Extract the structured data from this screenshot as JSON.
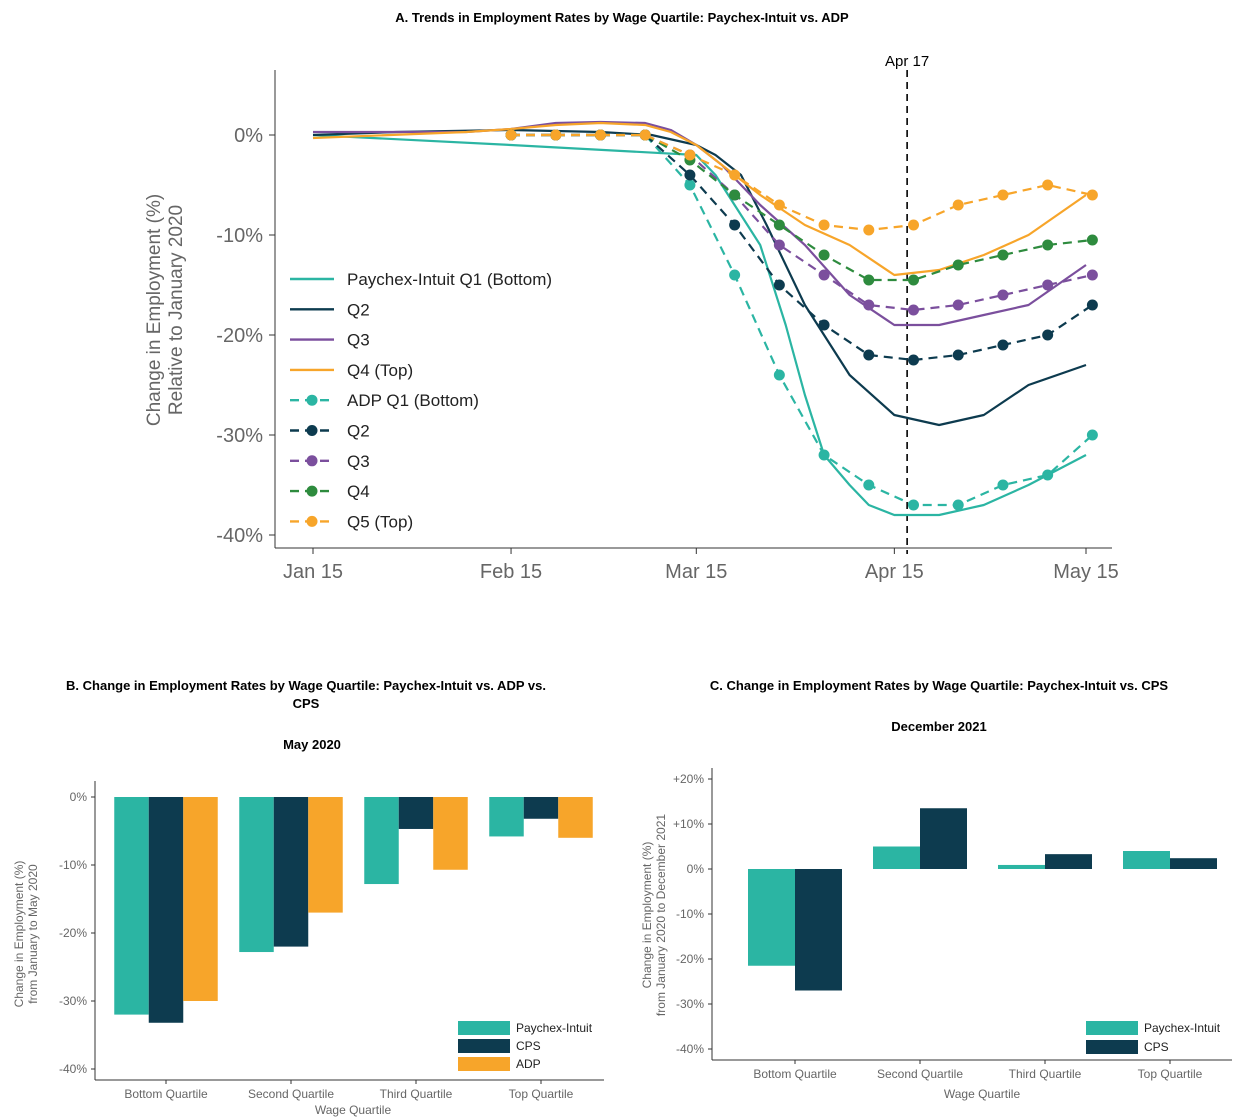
{
  "chart_data": [
    {
      "type": "line",
      "title": "A. Trends in Employment Rates by Wage Quartile: Paychex-Intuit vs. ADP",
      "ylabel": "Change in Employment (%)",
      "ylabel2": "Relative to January 2020",
      "x_ticks": [
        "Jan 15",
        "Feb 15",
        "Mar 15",
        "Apr 15",
        "May 15"
      ],
      "y_ticks": [
        "0%",
        "-10%",
        "-20%",
        "-30%",
        "-40%"
      ],
      "ylim": [
        -40,
        6
      ],
      "vline": {
        "date": "2020-04-17",
        "label": "Apr 17"
      },
      "legend_position": "left",
      "series": [
        {
          "name": "Paychex-Intuit Q1 (Bottom)",
          "color": "#2bb5a3",
          "style": "solid",
          "x": [
            "2020-01-15",
            "2020-02-15",
            "2020-03-15",
            "2020-03-18",
            "2020-03-21",
            "2020-03-25",
            "2020-03-29",
            "2020-04-01",
            "2020-04-04",
            "2020-04-08",
            "2020-04-11",
            "2020-04-15",
            "2020-04-22",
            "2020-04-29",
            "2020-05-06",
            "2020-05-15"
          ],
          "y": [
            0,
            -1,
            -2,
            -4,
            -7,
            -11,
            -19,
            -26,
            -32,
            -35,
            -37,
            -38,
            -38,
            -37,
            -35,
            -32
          ]
        },
        {
          "name": "Q2",
          "color": "#0d3b4f",
          "style": "solid",
          "x": [
            "2020-01-15",
            "2020-01-28",
            "2020-02-15",
            "2020-02-29",
            "2020-03-08",
            "2020-03-15",
            "2020-03-18",
            "2020-03-22",
            "2020-03-26",
            "2020-04-01",
            "2020-04-08",
            "2020-04-15",
            "2020-04-22",
            "2020-04-29",
            "2020-05-06",
            "2020-05-15"
          ],
          "y": [
            0,
            0.3,
            0.5,
            0.3,
            0,
            -1,
            -2,
            -4,
            -9,
            -17,
            -24,
            -28,
            -29,
            -28,
            -25,
            -23
          ]
        },
        {
          "name": "Q3",
          "color": "#7b4f9d",
          "style": "solid",
          "x": [
            "2020-01-15",
            "2020-02-08",
            "2020-02-15",
            "2020-02-22",
            "2020-02-29",
            "2020-03-07",
            "2020-03-11",
            "2020-03-15",
            "2020-03-19",
            "2020-03-25",
            "2020-04-01",
            "2020-04-08",
            "2020-04-15",
            "2020-04-22",
            "2020-04-29",
            "2020-05-06",
            "2020-05-15"
          ],
          "y": [
            0.3,
            0.3,
            0.6,
            1.2,
            1.3,
            1.2,
            0.5,
            -1,
            -3,
            -7,
            -11,
            -16,
            -19,
            -19,
            -18,
            -17,
            -13
          ]
        },
        {
          "name": "Q4 (Top)",
          "color": "#f7a52a",
          "style": "solid",
          "x": [
            "2020-01-15",
            "2020-02-08",
            "2020-02-15",
            "2020-02-22",
            "2020-02-29",
            "2020-03-07",
            "2020-03-11",
            "2020-03-15",
            "2020-03-19",
            "2020-03-25",
            "2020-04-01",
            "2020-04-08",
            "2020-04-15",
            "2020-04-22",
            "2020-04-29",
            "2020-05-06",
            "2020-05-15"
          ],
          "y": [
            -0.3,
            0.3,
            0.6,
            1.0,
            1.2,
            1.0,
            0.3,
            -1,
            -3,
            -6,
            -9,
            -11,
            -14,
            -13.5,
            -12,
            -10,
            -6
          ]
        },
        {
          "name": "ADP Q1 (Bottom)",
          "color": "#2bb5a3",
          "style": "dashed",
          "markers": true,
          "x": [
            "2020-02-15",
            "2020-02-22",
            "2020-02-29",
            "2020-03-07",
            "2020-03-14",
            "2020-03-21",
            "2020-03-28",
            "2020-04-04",
            "2020-04-11",
            "2020-04-18",
            "2020-04-25",
            "2020-05-02",
            "2020-05-09",
            "2020-05-16"
          ],
          "y": [
            0,
            0,
            0,
            0,
            -5,
            -14,
            -24,
            -32,
            -35,
            -37,
            -37,
            -35,
            -34,
            -30
          ]
        },
        {
          "name": "Q2",
          "color": "#0d3b4f",
          "style": "dashed",
          "markers": true,
          "x": [
            "2020-02-15",
            "2020-02-22",
            "2020-02-29",
            "2020-03-07",
            "2020-03-14",
            "2020-03-21",
            "2020-03-28",
            "2020-04-04",
            "2020-04-11",
            "2020-04-18",
            "2020-04-25",
            "2020-05-02",
            "2020-05-09",
            "2020-05-16"
          ],
          "y": [
            0,
            0,
            0,
            0,
            -4,
            -9,
            -15,
            -19,
            -22,
            -22.5,
            -22,
            -21,
            -20,
            -17
          ]
        },
        {
          "name": "Q3",
          "color": "#7b4f9d",
          "style": "dashed",
          "markers": true,
          "x": [
            "2020-02-15",
            "2020-02-22",
            "2020-02-29",
            "2020-03-07",
            "2020-03-14",
            "2020-03-21",
            "2020-03-28",
            "2020-04-04",
            "2020-04-11",
            "2020-04-18",
            "2020-04-25",
            "2020-05-02",
            "2020-05-09",
            "2020-05-16"
          ],
          "y": [
            0,
            0,
            0,
            0,
            -2,
            -6,
            -11,
            -14,
            -17,
            -17.5,
            -17,
            -16,
            -15,
            -14
          ]
        },
        {
          "name": "Q4",
          "color": "#2e8b3e",
          "style": "dashed",
          "markers": true,
          "x": [
            "2020-02-15",
            "2020-02-22",
            "2020-02-29",
            "2020-03-07",
            "2020-03-14",
            "2020-03-21",
            "2020-03-28",
            "2020-04-04",
            "2020-04-11",
            "2020-04-18",
            "2020-04-25",
            "2020-05-02",
            "2020-05-09",
            "2020-05-16"
          ],
          "y": [
            0,
            0,
            0,
            0,
            -2.5,
            -6,
            -9,
            -12,
            -14.5,
            -14.5,
            -13,
            -12,
            -11,
            -10.5
          ]
        },
        {
          "name": "Q5 (Top)",
          "color": "#f7a52a",
          "style": "dashed",
          "markers": true,
          "x": [
            "2020-02-15",
            "2020-02-22",
            "2020-02-29",
            "2020-03-07",
            "2020-03-14",
            "2020-03-21",
            "2020-03-28",
            "2020-04-04",
            "2020-04-11",
            "2020-04-18",
            "2020-04-25",
            "2020-05-02",
            "2020-05-09",
            "2020-05-16"
          ],
          "y": [
            0,
            0,
            0,
            0,
            -2,
            -4,
            -7,
            -9,
            -9.5,
            -9,
            -7,
            -6,
            -5,
            -6
          ]
        }
      ]
    },
    {
      "type": "bar",
      "title_lines": [
        "B. Change in Employment Rates by Wage Quartile: Paychex-Intuit vs. ADP vs.",
        "CPS"
      ],
      "subtitle": "May 2020",
      "ylabel": "Change in Employment (%)",
      "ylabel2": "from January to May 2020",
      "xlabel": "Wage Quartile",
      "categories": [
        "Bottom Quartile",
        "Second Quartile",
        "Third Quartile",
        "Top Quartile"
      ],
      "y_ticks": [
        {
          "value": 0,
          "label": "0%"
        },
        {
          "value": -10,
          "label": "-10%"
        },
        {
          "value": -20,
          "label": "-20%"
        },
        {
          "value": -30,
          "label": "-30%"
        },
        {
          "value": -40,
          "label": "-40%"
        }
      ],
      "ylim": [
        -41.5,
        2.5
      ],
      "legend_position": "bottom-right",
      "series": [
        {
          "name": "Paychex-Intuit",
          "color": "#2bb5a3",
          "values": [
            -32,
            -22.8,
            -12.8,
            -5.8
          ]
        },
        {
          "name": "CPS",
          "color": "#0d3b4f",
          "values": [
            -33.2,
            -22,
            -4.7,
            -3.2
          ]
        },
        {
          "name": "ADP",
          "color": "#f7a52a",
          "values": [
            -30,
            -17,
            -10.7,
            -6
          ]
        }
      ]
    },
    {
      "type": "bar",
      "title": "C. Change in Employment Rates by Wage Quartile: Paychex-Intuit vs. CPS",
      "subtitle": "December 2021",
      "ylabel": "Change in Employment (%)",
      "ylabel2": "from January 2020 to December 2021",
      "xlabel": "Wage Quartile",
      "categories": [
        "Bottom Quartile",
        "Second Quartile",
        "Third Quartile",
        "Top Quartile"
      ],
      "y_ticks": [
        {
          "value": 20,
          "label": "+20%"
        },
        {
          "value": 10,
          "label": "+10%"
        },
        {
          "value": 0,
          "label": "0%"
        },
        {
          "value": -10,
          "label": "-10%"
        },
        {
          "value": -20,
          "label": "-20%"
        },
        {
          "value": -30,
          "label": "-30%"
        },
        {
          "value": -40,
          "label": "-40%"
        }
      ],
      "ylim": [
        -42,
        22
      ],
      "legend_position": "bottom-right",
      "series": [
        {
          "name": "Paychex-Intuit",
          "color": "#2bb5a3",
          "values": [
            -21.5,
            5,
            0.9,
            4
          ]
        },
        {
          "name": "CPS",
          "color": "#0d3b4f",
          "values": [
            -27,
            13.5,
            3.3,
            2.4
          ]
        }
      ]
    }
  ]
}
